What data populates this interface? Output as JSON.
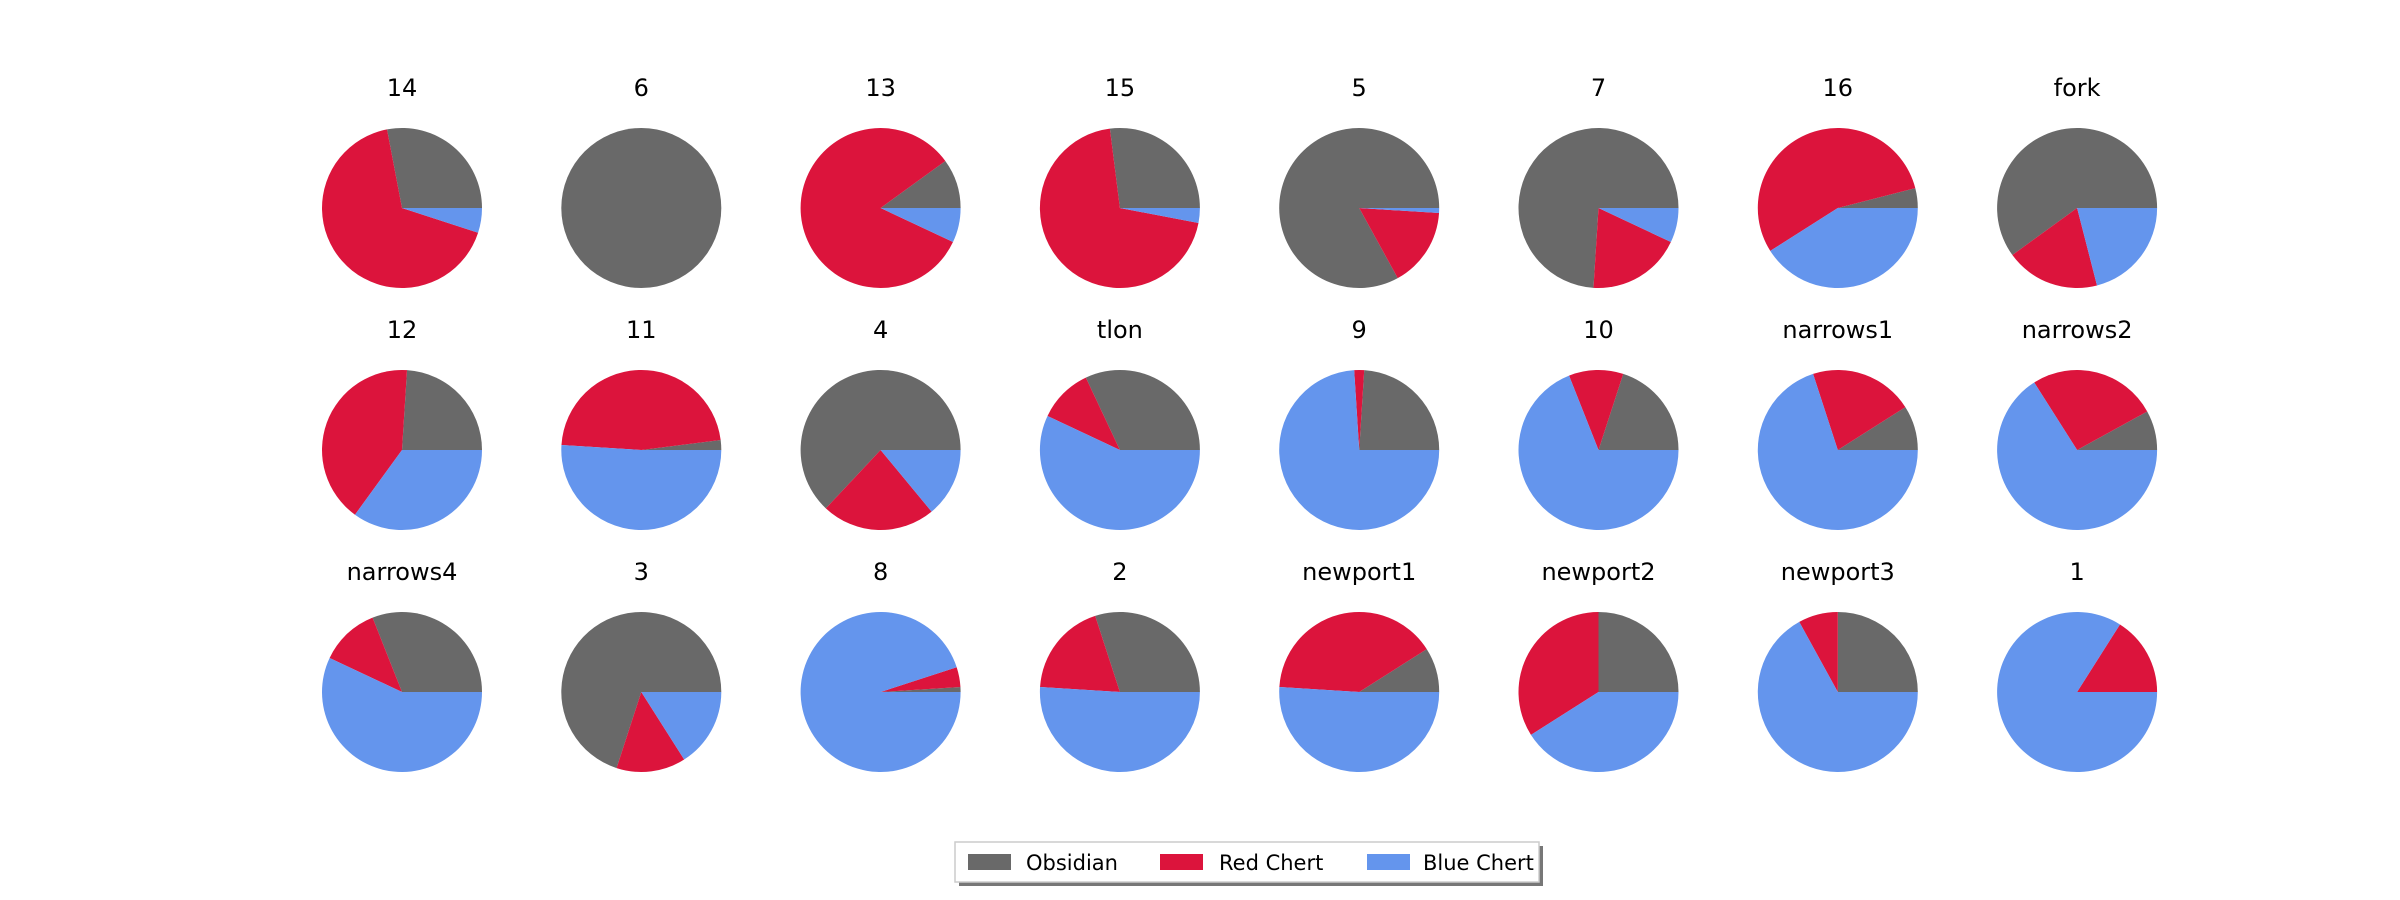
{
  "chart_data": {
    "type": "pie",
    "categories": [
      "Obsidian",
      "Red Chert",
      "Blue Chert"
    ],
    "colors": {
      "Obsidian": "#696969",
      "Red Chert": "#dc143c",
      "Blue Chert": "#6495ed"
    },
    "start_angle_deg": 0,
    "direction": "counterclockwise",
    "legend": {
      "placement": "bottom-center",
      "columns": 3,
      "entries": [
        "Obsidian",
        "Red Chert",
        "Blue Chert"
      ]
    },
    "pies": [
      {
        "title": "14",
        "values": [
          28,
          67,
          5
        ]
      },
      {
        "title": "6",
        "values": [
          100,
          0,
          0
        ]
      },
      {
        "title": "13",
        "values": [
          10,
          83,
          7
        ]
      },
      {
        "title": "15",
        "values": [
          27,
          70,
          3
        ]
      },
      {
        "title": "5",
        "values": [
          83,
          16,
          1
        ]
      },
      {
        "title": "7",
        "values": [
          74,
          19,
          7
        ]
      },
      {
        "title": "16",
        "values": [
          4,
          55,
          41
        ]
      },
      {
        "title": "fork",
        "values": [
          60,
          19,
          21
        ]
      },
      {
        "title": "12",
        "values": [
          24,
          41,
          35
        ]
      },
      {
        "title": "11",
        "values": [
          2,
          47,
          51
        ]
      },
      {
        "title": "4",
        "values": [
          63,
          23,
          14
        ]
      },
      {
        "title": "tlon",
        "values": [
          32,
          11,
          57
        ]
      },
      {
        "title": "9",
        "values": [
          24,
          2,
          74
        ]
      },
      {
        "title": "10",
        "values": [
          20,
          11,
          69
        ]
      },
      {
        "title": "narrows1",
        "values": [
          9,
          21,
          70
        ]
      },
      {
        "title": "narrows2",
        "values": [
          8,
          26,
          66
        ]
      },
      {
        "title": "narrows4",
        "values": [
          31,
          12,
          57
        ]
      },
      {
        "title": "3",
        "values": [
          70,
          14,
          16
        ]
      },
      {
        "title": "8",
        "values": [
          1,
          4,
          95
        ]
      },
      {
        "title": "2",
        "values": [
          30,
          19,
          51
        ]
      },
      {
        "title": "newport1",
        "values": [
          9,
          40,
          51
        ]
      },
      {
        "title": "newport2",
        "values": [
          25,
          34,
          41
        ]
      },
      {
        "title": "newport3",
        "values": [
          25,
          8,
          67
        ]
      },
      {
        "title": "1",
        "values": [
          0,
          16,
          84
        ]
      }
    ]
  }
}
